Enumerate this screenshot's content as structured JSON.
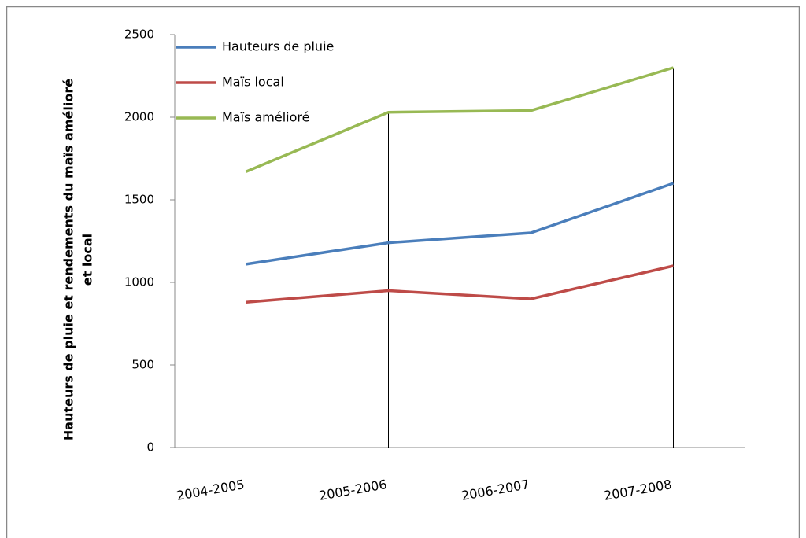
{
  "chart_data": {
    "type": "line",
    "y_label": [
      "Hauteurs de pluie et rendements du maïs amélioré",
      "et local"
    ],
    "categories": [
      "2004-2005",
      "2005-2006",
      "2006-2007",
      "2007-2008"
    ],
    "series": [
      {
        "name": "Hauteurs de pluie",
        "color": "#4a7ebb",
        "values": [
          1110,
          1240,
          1300,
          1600
        ]
      },
      {
        "name": "Maïs local",
        "color": "#be4b48",
        "values": [
          880,
          950,
          900,
          1100
        ]
      },
      {
        "name": "Maïs amélioré",
        "color": "#98b954",
        "values": [
          1670,
          2030,
          2040,
          2300
        ]
      }
    ],
    "ylim": [
      0,
      2500
    ],
    "yticks": [
      0,
      500,
      1000,
      1500,
      2000,
      2500
    ],
    "grid": false,
    "drop_lines": true,
    "legend": "upper-left"
  }
}
